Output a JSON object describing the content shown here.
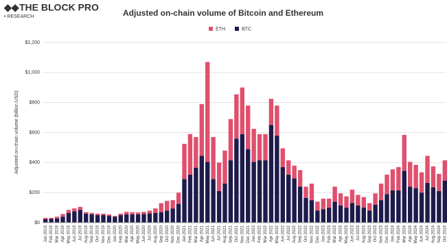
{
  "header": {
    "logo": "THE BLOCK PRO",
    "subtitle": "• RESEARCH"
  },
  "chart_data": {
    "type": "stacked_bar",
    "title": "Adjusted on-chain volume of Bitcoin and Ethereum",
    "y_label": "Adjusted on-chain volume (billion USD)",
    "categories": [
      "Jan 2019",
      "Feb 2019",
      "Mar 2019",
      "Apr 2019",
      "May 2019",
      "Jun 2019",
      "Jul 2019",
      "Aug 2019",
      "Sep 2019",
      "Oct 2019",
      "Nov 2019",
      "Dec 2019",
      "Jan 2020",
      "Feb 2020",
      "Mar 2020",
      "Apr 2020",
      "May 2020",
      "Jun 2020",
      "Jul 2020",
      "Aug 2020",
      "Sep 2020",
      "Oct 2020",
      "Nov 2020",
      "Dec 2020",
      "Jan 2021",
      "Feb 2021",
      "Mar 2021",
      "Apr 2021",
      "May 2021",
      "Jun 2021",
      "Jul 2021",
      "Aug 2021",
      "Sep 2021",
      "Oct 2021",
      "Nov 2021",
      "Dec 2021",
      "Jan 2022",
      "Feb 2022",
      "Mar 2022",
      "Apr 2022",
      "May 2022",
      "Jun 2022",
      "Jul 2022",
      "Aug 2022",
      "Sep 2022",
      "Oct 2022",
      "Nov 2022",
      "Dec 2022",
      "Jan 2023",
      "Feb 2023",
      "Mar 2023",
      "Apr 2023",
      "May 2023",
      "Jun 2023",
      "Jul 2023",
      "Aug 2023",
      "Sep 2023",
      "Oct 2023",
      "Nov 2023",
      "Dec 2023",
      "Jan 2024",
      "Feb 2024",
      "Mar 2024",
      "Apr 2024",
      "May 2024",
      "Jun 2024",
      "Jul 2024",
      "Aug 2024",
      "Sep 2024",
      "Oct 2024"
    ],
    "series": [
      {
        "name": "ETH",
        "color": "#e0506e",
        "values": [
          9,
          7,
          12,
          18,
          20,
          20,
          20,
          10,
          10,
          10,
          10,
          10,
          5,
          10,
          17,
          15,
          13,
          14,
          18,
          30,
          60,
          65,
          55,
          75,
          235,
          270,
          205,
          345,
          665,
          280,
          190,
          220,
          275,
          295,
          310,
          290,
          220,
          175,
          175,
          175,
          200,
          125,
          95,
          85,
          110,
          75,
          110,
          60,
          70,
          60,
          100,
          80,
          75,
          90,
          70,
          70,
          50,
          75,
          110,
          130,
          140,
          155,
          240,
          165,
          155,
          135,
          180,
          140,
          115,
          135
        ]
      },
      {
        "name": "BTC",
        "color": "#1e1b4b",
        "values": [
          23,
          25,
          28,
          40,
          65,
          75,
          85,
          60,
          55,
          50,
          50,
          45,
          40,
          50,
          55,
          55,
          55,
          58,
          62,
          65,
          70,
          80,
          95,
          125,
          290,
          320,
          365,
          445,
          405,
          290,
          210,
          260,
          415,
          560,
          590,
          490,
          405,
          415,
          415,
          650,
          580,
          370,
          320,
          295,
          240,
          165,
          150,
          80,
          90,
          100,
          140,
          115,
          100,
          130,
          115,
          100,
          80,
          120,
          150,
          190,
          215,
          215,
          345,
          240,
          230,
          200,
          265,
          235,
          210,
          280
        ]
      }
    ],
    "ylim": [
      0,
      1200
    ],
    "yticks": [
      {
        "value": 0,
        "label": "$0"
      },
      {
        "value": 200,
        "label": "$200"
      },
      {
        "value": 400,
        "label": "$400"
      },
      {
        "value": 600,
        "label": "$600"
      },
      {
        "value": 800,
        "label": "$800"
      },
      {
        "value": 1000,
        "label": "$1,000"
      },
      {
        "value": 1200,
        "label": "$1,200"
      }
    ],
    "grid": true,
    "legend": "top"
  }
}
